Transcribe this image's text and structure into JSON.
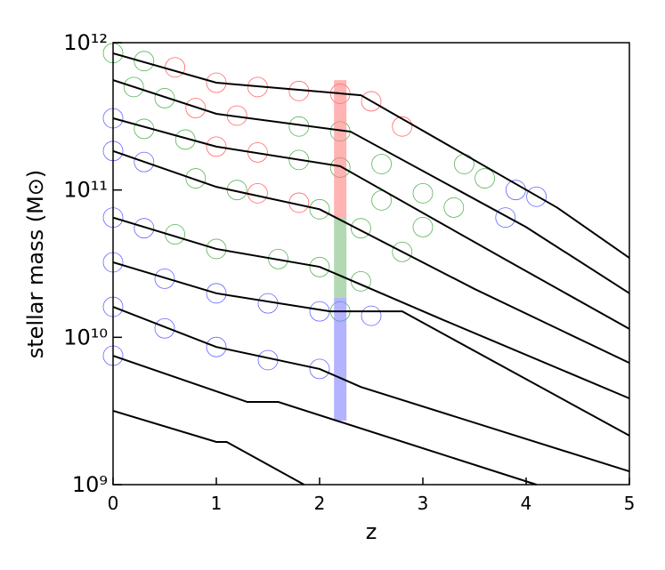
{
  "chart_data": {
    "type": "line",
    "xlabel": "z",
    "ylabel": "stellar mass (M⊙)",
    "xlim": [
      0,
      5
    ],
    "ylim": [
      1000000000.0,
      1000000000000.0
    ],
    "log_y": true,
    "xticks": [
      0,
      1,
      2,
      3,
      4,
      5
    ],
    "yticks": [
      {
        "value": 1000000000.0,
        "label": "10⁹"
      },
      {
        "value": 10000000000.0,
        "label": "10¹⁰"
      },
      {
        "value": 100000000000.0,
        "label": "10¹¹"
      },
      {
        "value": 1000000000000.0,
        "label": "10¹²"
      }
    ],
    "bands": [
      {
        "x": 2.2,
        "y": [
          65000000000.0,
          557000000000.0
        ],
        "color": "#ff8080"
      },
      {
        "x": 2.2,
        "y": [
          18500000000.0,
          65000000000.0
        ],
        "color": "#80c080"
      },
      {
        "x": 2.2,
        "y": [
          2720000000.0,
          18500000000.0
        ],
        "color": "#8080ff"
      }
    ],
    "series": [
      {
        "type": "scatter",
        "color": "#ff4040",
        "x": [
          0.6,
          1.0,
          1.4,
          1.8,
          2.2,
          2.5,
          2.8,
          0.8,
          1.2,
          1.0,
          1.4,
          1.4,
          1.8
        ],
        "values": [
          680000000000.0,
          535000000000.0,
          500000000000.0,
          470000000000.0,
          450000000000.0,
          400000000000.0,
          270000000000.0,
          360000000000.0,
          320000000000.0,
          197000000000.0,
          180000000000.0,
          95000000000.0,
          82000000000.0
        ]
      },
      {
        "type": "scatter",
        "color": "#30a030",
        "x": [
          0,
          0.3,
          3.4,
          3.6,
          0.2,
          0.5,
          1.8,
          2.2,
          2.6,
          3.0,
          3.3,
          0.3,
          0.7,
          1.8,
          2.2,
          2.6,
          3.0,
          0.8,
          1.2,
          2.0,
          2.4,
          2.8,
          0.6,
          1.0,
          1.6,
          2.0,
          2.4,
          2.2
        ],
        "values": [
          850000000000.0,
          750000000000.0,
          150000000000.0,
          120000000000.0,
          500000000000.0,
          420000000000.0,
          270000000000.0,
          250000000000.0,
          150000000000.0,
          95000000000.0,
          76000000000.0,
          260000000000.0,
          220000000000.0,
          160000000000.0,
          142000000000.0,
          85000000000.0,
          56000000000.0,
          120000000000.0,
          100000000000.0,
          74000000000.0,
          55000000000.0,
          38000000000.0,
          50000000000.0,
          39800000000.0,
          34000000000.0,
          30000000000.0,
          24000000000.0,
          15000000000.0
        ]
      },
      {
        "type": "scatter",
        "color": "#4040ff",
        "x": [
          3.9,
          4.1,
          3.8,
          0,
          0,
          0.3,
          0,
          0.3,
          0,
          0.5,
          1.0,
          1.5,
          2.0,
          2.5,
          0,
          0.5,
          1.0,
          1.5,
          2.0,
          0
        ],
        "values": [
          100000000000.0,
          90000000000.0,
          65000000000.0,
          307000000000.0,
          184000000000.0,
          155000000000.0,
          65000000000.0,
          55000000000.0,
          32300000000.0,
          25000000000.0,
          19900000000.0,
          17000000000.0,
          15000000000.0,
          14000000000.0,
          16100000000.0,
          11500000000.0,
          8600000000.0,
          7000000000.0,
          6100000000.0,
          7500000000.0
        ]
      },
      {
        "type": "line",
        "color": "#000000",
        "x": [
          0,
          1,
          2.4,
          4.3,
          5
        ],
        "values": [
          847000000000.0,
          535000000000.0,
          440000000000.0,
          76000000000.0,
          34600000000.0
        ]
      },
      {
        "type": "line",
        "color": "#000000",
        "x": [
          0,
          1,
          2.3,
          4.0,
          5
        ],
        "values": [
          557000000000.0,
          329000000000.0,
          249000000000.0,
          56000000000.0,
          19900000000.0
        ]
      },
      {
        "type": "line",
        "color": "#000000",
        "x": [
          0,
          1,
          2.2,
          3.8,
          5
        ],
        "values": [
          307000000000.0,
          197000000000.0,
          145000000000.0,
          33700000000.0,
          11400000000.0
        ]
      },
      {
        "type": "line",
        "color": "#000000",
        "x": [
          0,
          1,
          2.0,
          3.5,
          5
        ],
        "values": [
          184000000000.0,
          105000000000.0,
          74000000000.0,
          21300000000.0,
          6700000000.0
        ]
      },
      {
        "type": "line",
        "color": "#000000",
        "x": [
          0,
          1,
          2.0,
          3.2,
          5
        ],
        "values": [
          65000000000.0,
          39800000000.0,
          30100000000.0,
          13100000000.0,
          3850000000.0
        ]
      },
      {
        "type": "line",
        "color": "#000000",
        "x": [
          0,
          1,
          2.1,
          2.8,
          5
        ],
        "values": [
          32300000000.0,
          19900000000.0,
          15000000000.0,
          15000000000.0,
          2150000000.0
        ]
      },
      {
        "type": "line",
        "color": "#000000",
        "x": [
          0,
          1,
          2,
          2.4,
          5
        ],
        "values": [
          16100000000.0,
          8600000000.0,
          6100000000.0,
          4600000000.0,
          1230000000.0
        ]
      },
      {
        "type": "line",
        "color": "#000000",
        "x": [
          0,
          1.3,
          1.6,
          4.1
        ],
        "values": [
          7500000000.0,
          3640000000.0,
          3640000000.0,
          1000000000.0
        ]
      },
      {
        "type": "line",
        "color": "#000000",
        "x": [
          0,
          1,
          1.1,
          1.85
        ],
        "values": [
          3170000000.0,
          1950000000.0,
          1950000000.0,
          1000000000.0
        ]
      }
    ]
  }
}
